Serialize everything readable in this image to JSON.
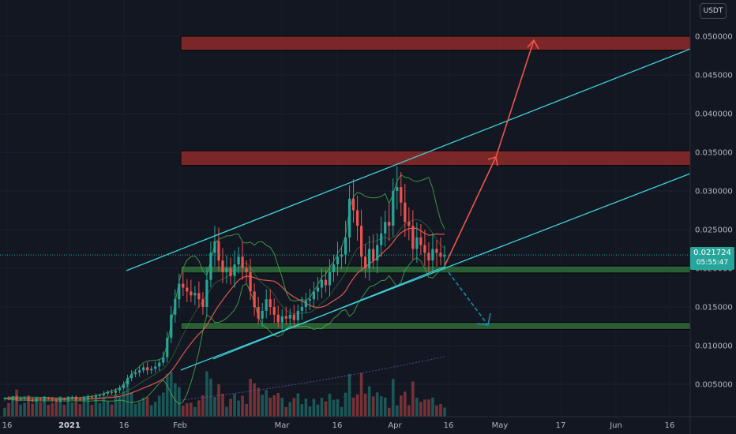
{
  "unit": "USDT",
  "current_price": "0.021724",
  "countdown": "05:55:47",
  "colors": {
    "background": "#131722",
    "up": "#26a69a",
    "down": "#ef5350",
    "channel": "#3fd0d9",
    "resistance": "#8e2a2a",
    "support": "#2f6b3a",
    "ma_red": "#e0584f",
    "bollinger": "#4caf50",
    "arrow_up": "#f0544f",
    "arrow_down": "#1e88a8"
  },
  "chart_data": {
    "type": "candlestick",
    "y_axis": {
      "min": 0.0,
      "max": 0.0535,
      "ticks": [
        "0.050000",
        "0.045000",
        "0.040000",
        "0.035000",
        "0.030000",
        "0.025000",
        "0.020000",
        "0.015000",
        "0.010000",
        "0.005000"
      ]
    },
    "x_axis": {
      "labels": [
        "16",
        "2021",
        "16",
        "Feb",
        "Mar",
        "16",
        "Apr",
        "16",
        "May",
        "17",
        "Jun",
        "16"
      ],
      "bold": [
        "2021"
      ]
    },
    "zones": [
      {
        "kind": "resistance",
        "low": 0.0482,
        "high": 0.05
      },
      {
        "kind": "resistance",
        "low": 0.0333,
        "high": 0.0352
      },
      {
        "kind": "support",
        "low": 0.0194,
        "high": 0.0203
      },
      {
        "kind": "support",
        "low": 0.0121,
        "high": 0.013
      }
    ],
    "closes": [
      0.0032,
      0.0031,
      0.0033,
      0.003,
      0.0031,
      0.0032,
      0.003,
      0.0029,
      0.0031,
      0.003,
      0.0032,
      0.0031,
      0.003,
      0.0029,
      0.0031,
      0.003,
      0.0032,
      0.0033,
      0.0031,
      0.003,
      0.0032,
      0.0034,
      0.0033,
      0.0035,
      0.0036,
      0.0038,
      0.004,
      0.0039,
      0.0042,
      0.0045,
      0.005,
      0.0058,
      0.0063,
      0.0065,
      0.0068,
      0.0072,
      0.0068,
      0.007,
      0.0073,
      0.0078,
      0.0085,
      0.011,
      0.014,
      0.016,
      0.018,
      0.0175,
      0.017,
      0.0165,
      0.0168,
      0.016,
      0.015,
      0.0185,
      0.022,
      0.0235,
      0.021,
      0.0195,
      0.02,
      0.019,
      0.0205,
      0.0215,
      0.02,
      0.0195,
      0.017,
      0.015,
      0.0135,
      0.0145,
      0.016,
      0.015,
      0.014,
      0.013,
      0.0138,
      0.0135,
      0.014,
      0.0133,
      0.0145,
      0.015,
      0.0158,
      0.016,
      0.017,
      0.0175,
      0.0185,
      0.0178,
      0.0195,
      0.0205,
      0.0215,
      0.0218,
      0.024,
      0.029,
      0.0275,
      0.0255,
      0.0215,
      0.02,
      0.0225,
      0.021,
      0.023,
      0.0245,
      0.026,
      0.0255,
      0.03,
      0.0305,
      0.0285,
      0.026,
      0.0255,
      0.0225,
      0.024,
      0.023,
      0.022,
      0.021,
      0.0225,
      0.022,
      0.0215,
      0.02172
    ],
    "overlays": {
      "current_price_line": 0.021724,
      "ascending_channel": true,
      "moving_average": true,
      "bollinger_bands": true,
      "volume": true,
      "projection_arrows": [
        "up to 0.035000 zone",
        "up to 0.050000 zone",
        "down to 0.013000 zone"
      ]
    }
  }
}
